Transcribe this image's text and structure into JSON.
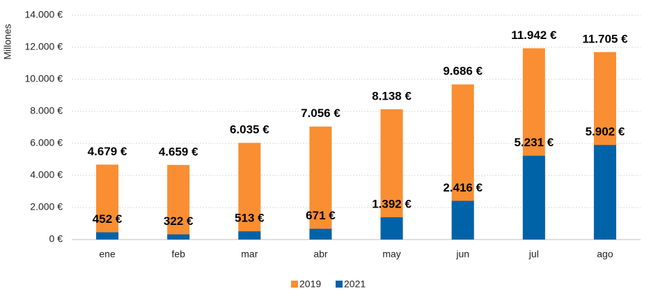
{
  "chart_data": {
    "type": "bar",
    "y_axis_label": "Millones",
    "categories": [
      "ene",
      "feb",
      "mar",
      "abr",
      "may",
      "jun",
      "jul",
      "ago"
    ],
    "series": [
      {
        "name": "2019",
        "color": "#f98e32",
        "values": [
          4679,
          4659,
          6035,
          7056,
          8138,
          9686,
          11942,
          11705
        ],
        "value_labels": [
          "4.679 €",
          "4.659 €",
          "6.035 €",
          "7.056 €",
          "8.138 €",
          "9.686 €",
          "11.942 €",
          "11.705 €"
        ]
      },
      {
        "name": "2021",
        "color": "#0063a8",
        "values": [
          452,
          322,
          513,
          671,
          1392,
          2416,
          5231,
          5902
        ],
        "value_labels": [
          "452 €",
          "322 €",
          "513 €",
          "671 €",
          "1.392 €",
          "2.416 €",
          "5.231 €",
          "5.902 €"
        ]
      }
    ],
    "ylim": [
      0,
      14000
    ],
    "yticks": [
      {
        "value": 0,
        "label": "0 €"
      },
      {
        "value": 2000,
        "label": "2.000 €"
      },
      {
        "value": 4000,
        "label": "4.000 €"
      },
      {
        "value": 6000,
        "label": "6.000 €"
      },
      {
        "value": 8000,
        "label": "8.000 €"
      },
      {
        "value": 10000,
        "label": "10.000 €"
      },
      {
        "value": 12000,
        "label": "12.000 €"
      },
      {
        "value": 14000,
        "label": "14.000 €"
      }
    ],
    "grid": true,
    "legend": "bottom"
  }
}
